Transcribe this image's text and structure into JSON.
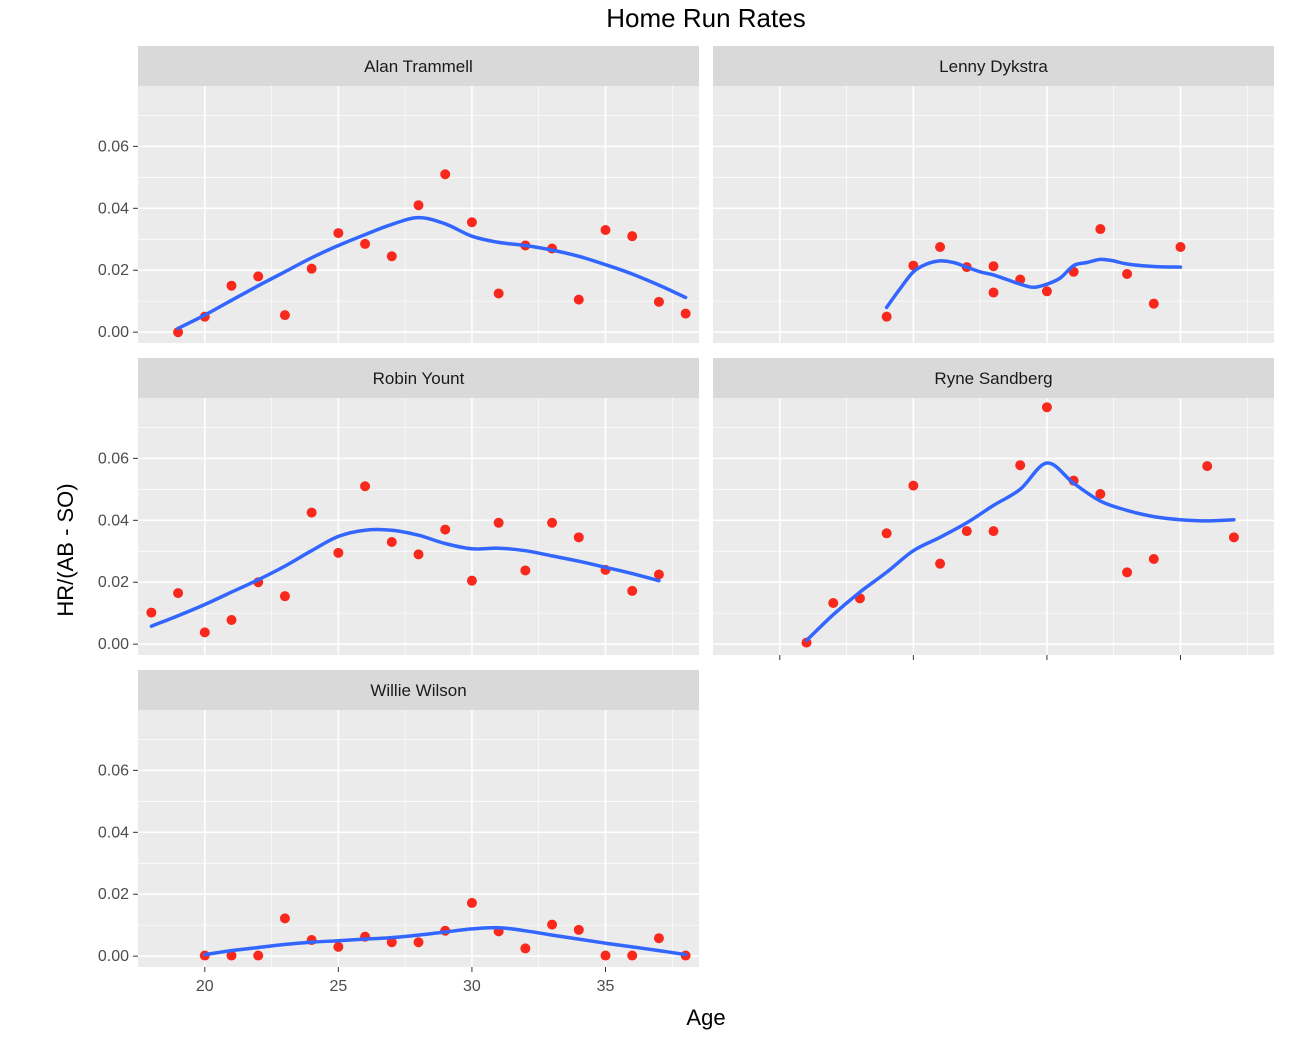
{
  "chart_data": {
    "type": "scatter",
    "title": "Home Run Rates",
    "xlabel": "Age",
    "ylabel": "HR/(AB - SO)",
    "xlim": [
      17.5,
      38.5
    ],
    "ylim": [
      -0.0035,
      0.0795
    ],
    "x_ticks": [
      20,
      25,
      30,
      35
    ],
    "y_ticks": [
      0.0,
      0.02,
      0.04,
      0.06
    ],
    "y_tick_labels": [
      "0.00",
      "0.02",
      "0.04",
      "0.06"
    ],
    "grid": true,
    "colors": {
      "points": "#f8291c",
      "smooth": "#3366ff",
      "panel_bg": "#ebebeb",
      "strip_bg": "#d9d9d9",
      "grid": "#ffffff"
    },
    "panels": [
      {
        "label": "Alan Trammell",
        "points": [
          [
            19,
            0.0
          ],
          [
            20,
            0.005
          ],
          [
            21,
            0.015
          ],
          [
            22,
            0.018
          ],
          [
            23,
            0.0055
          ],
          [
            24,
            0.0205
          ],
          [
            25,
            0.032
          ],
          [
            26,
            0.0285
          ],
          [
            27,
            0.0245
          ],
          [
            28,
            0.041
          ],
          [
            29,
            0.051
          ],
          [
            30,
            0.0355
          ],
          [
            31,
            0.0125
          ],
          [
            32,
            0.028
          ],
          [
            33,
            0.027
          ],
          [
            34,
            0.0105
          ],
          [
            35,
            0.033
          ],
          [
            36,
            0.031
          ],
          [
            37,
            0.0098
          ],
          [
            38,
            0.006
          ]
        ],
        "smooth": [
          [
            19,
            0.0012
          ],
          [
            20,
            0.0055
          ],
          [
            21,
            0.0103
          ],
          [
            22,
            0.015
          ],
          [
            23,
            0.0195
          ],
          [
            24,
            0.024
          ],
          [
            25,
            0.028
          ],
          [
            26,
            0.0315
          ],
          [
            27,
            0.0348
          ],
          [
            28,
            0.037
          ],
          [
            29,
            0.035
          ],
          [
            30,
            0.031
          ],
          [
            31,
            0.029
          ],
          [
            32,
            0.028
          ],
          [
            33,
            0.0265
          ],
          [
            34,
            0.0245
          ],
          [
            35,
            0.0218
          ],
          [
            36,
            0.0188
          ],
          [
            37,
            0.0152
          ],
          [
            38,
            0.0112
          ]
        ]
      },
      {
        "label": "Lenny Dykstra",
        "points": [
          [
            24,
            0.005
          ],
          [
            25,
            0.0215
          ],
          [
            26,
            0.0275
          ],
          [
            27,
            0.021
          ],
          [
            28,
            0.0128
          ],
          [
            28,
            0.0213
          ],
          [
            29,
            0.017
          ],
          [
            30,
            0.0132
          ],
          [
            31,
            0.0195
          ],
          [
            32,
            0.0333
          ],
          [
            33,
            0.0188
          ],
          [
            34,
            0.0092
          ],
          [
            35,
            0.0275
          ]
        ],
        "smooth": [
          [
            24,
            0.008
          ],
          [
            24.5,
            0.014
          ],
          [
            25,
            0.0195
          ],
          [
            25.5,
            0.022
          ],
          [
            26,
            0.023
          ],
          [
            26.5,
            0.0225
          ],
          [
            27,
            0.021
          ],
          [
            27.5,
            0.0195
          ],
          [
            28,
            0.0185
          ],
          [
            28.5,
            0.017
          ],
          [
            29,
            0.0155
          ],
          [
            29.5,
            0.0145
          ],
          [
            30,
            0.0155
          ],
          [
            30.5,
            0.0175
          ],
          [
            31,
            0.0215
          ],
          [
            31.5,
            0.0225
          ],
          [
            32,
            0.0235
          ],
          [
            32.5,
            0.023
          ],
          [
            33,
            0.022
          ],
          [
            34,
            0.0212
          ],
          [
            35,
            0.021
          ]
        ]
      },
      {
        "label": "Robin Yount",
        "points": [
          [
            18,
            0.0102
          ],
          [
            19,
            0.0165
          ],
          [
            20,
            0.0038
          ],
          [
            21,
            0.0078
          ],
          [
            22,
            0.02
          ],
          [
            23,
            0.0155
          ],
          [
            24,
            0.0425
          ],
          [
            25,
            0.0295
          ],
          [
            26,
            0.051
          ],
          [
            27,
            0.033
          ],
          [
            28,
            0.029
          ],
          [
            29,
            0.037
          ],
          [
            30,
            0.0205
          ],
          [
            31,
            0.0392
          ],
          [
            32,
            0.0238
          ],
          [
            33,
            0.0392
          ],
          [
            34,
            0.0345
          ],
          [
            35,
            0.024
          ],
          [
            36,
            0.0172
          ],
          [
            37,
            0.0225
          ]
        ],
        "smooth": [
          [
            18,
            0.0058
          ],
          [
            19,
            0.0092
          ],
          [
            20,
            0.0128
          ],
          [
            21,
            0.0168
          ],
          [
            22,
            0.0208
          ],
          [
            23,
            0.0252
          ],
          [
            24,
            0.0302
          ],
          [
            25,
            0.0348
          ],
          [
            26,
            0.0368
          ],
          [
            27,
            0.0368
          ],
          [
            28,
            0.0352
          ],
          [
            29,
            0.0325
          ],
          [
            30,
            0.0308
          ],
          [
            31,
            0.031
          ],
          [
            32,
            0.0302
          ],
          [
            33,
            0.0285
          ],
          [
            34,
            0.0268
          ],
          [
            35,
            0.0248
          ],
          [
            36,
            0.0228
          ],
          [
            37,
            0.0205
          ]
        ]
      },
      {
        "label": "Ryne Sandberg",
        "points": [
          [
            21,
            0.0005
          ],
          [
            22,
            0.0133
          ],
          [
            23,
            0.0148
          ],
          [
            24,
            0.0358
          ],
          [
            25,
            0.0512
          ],
          [
            26,
            0.026
          ],
          [
            27,
            0.0365
          ],
          [
            28,
            0.0365
          ],
          [
            29,
            0.0578
          ],
          [
            30,
            0.0765
          ],
          [
            31,
            0.0528
          ],
          [
            32,
            0.0485
          ],
          [
            33,
            0.0232
          ],
          [
            34,
            0.0275
          ],
          [
            36,
            0.0575
          ],
          [
            37,
            0.0345
          ]
        ],
        "smooth": [
          [
            21,
            0.0012
          ],
          [
            22,
            0.0095
          ],
          [
            23,
            0.0168
          ],
          [
            24,
            0.0232
          ],
          [
            25,
            0.0302
          ],
          [
            26,
            0.0345
          ],
          [
            27,
            0.0392
          ],
          [
            28,
            0.0448
          ],
          [
            29,
            0.05
          ],
          [
            30,
            0.0585
          ],
          [
            31,
            0.052
          ],
          [
            32,
            0.0462
          ],
          [
            33,
            0.0432
          ],
          [
            34,
            0.0412
          ],
          [
            35,
            0.0402
          ],
          [
            36,
            0.0398
          ],
          [
            37,
            0.0402
          ]
        ]
      },
      {
        "label": "Willie Wilson",
        "points": [
          [
            20,
            0.0002
          ],
          [
            21,
            0.0002
          ],
          [
            22,
            0.0002
          ],
          [
            23,
            0.0122
          ],
          [
            24,
            0.0052
          ],
          [
            25,
            0.003
          ],
          [
            26,
            0.0063
          ],
          [
            27,
            0.0045
          ],
          [
            28,
            0.0045
          ],
          [
            29,
            0.0082
          ],
          [
            30,
            0.0172
          ],
          [
            31,
            0.008
          ],
          [
            32,
            0.0025
          ],
          [
            33,
            0.0102
          ],
          [
            34,
            0.0085
          ],
          [
            35,
            0.0002
          ],
          [
            36,
            0.0002
          ],
          [
            37,
            0.0058
          ],
          [
            38,
            0.0002
          ]
        ],
        "smooth": [
          [
            20,
            0.0005
          ],
          [
            21,
            0.0018
          ],
          [
            22,
            0.0028
          ],
          [
            23,
            0.0038
          ],
          [
            24,
            0.0045
          ],
          [
            25,
            0.005
          ],
          [
            26,
            0.0055
          ],
          [
            27,
            0.006
          ],
          [
            28,
            0.0068
          ],
          [
            29,
            0.0078
          ],
          [
            30,
            0.0088
          ],
          [
            31,
            0.0092
          ],
          [
            32,
            0.0082
          ],
          [
            33,
            0.0068
          ],
          [
            34,
            0.0055
          ],
          [
            35,
            0.0042
          ],
          [
            36,
            0.003
          ],
          [
            37,
            0.0018
          ],
          [
            38,
            0.0005
          ]
        ]
      }
    ]
  }
}
